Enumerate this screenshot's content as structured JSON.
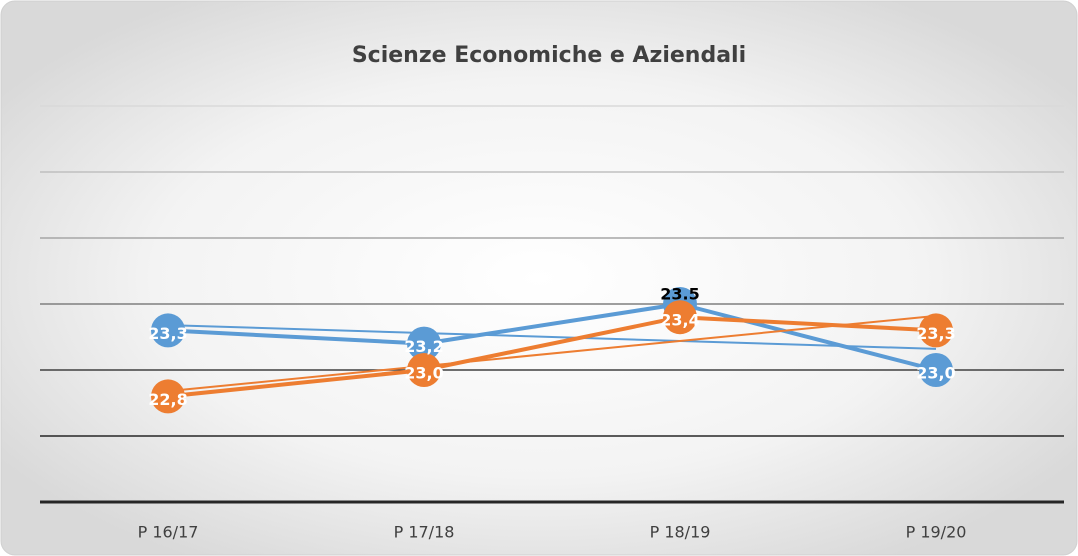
{
  "chart_data": {
    "type": "line",
    "title": "Scienze Economiche e Aziendali",
    "categories": [
      "P 16/17",
      "P 17/18",
      "P 18/19",
      "P 19/20"
    ],
    "series": [
      {
        "color": "#5b9bd5",
        "values": [
          23.3,
          23.2,
          23.5,
          23.0
        ],
        "value_labels": [
          "23,3",
          "23,2",
          "23.5",
          "23,0"
        ],
        "label_colors": [
          "#ffffff",
          "#ffffff",
          "#000000",
          "#ffffff"
        ]
      },
      {
        "color": "#ed7d31",
        "values": [
          22.8,
          23.0,
          23.4,
          23.3
        ],
        "value_labels": [
          "22,8",
          "23,0",
          "23,4",
          "23,3"
        ],
        "label_colors": [
          "#ffffff",
          "#ffffff",
          "#ffffff",
          "#ffffff"
        ]
      }
    ],
    "ylim": [
      22.0,
      25.0
    ],
    "yticks": [
      22.0,
      22.5,
      23.0,
      23.5,
      24.0,
      24.5,
      25.0
    ],
    "grid": true,
    "trendline": true
  }
}
